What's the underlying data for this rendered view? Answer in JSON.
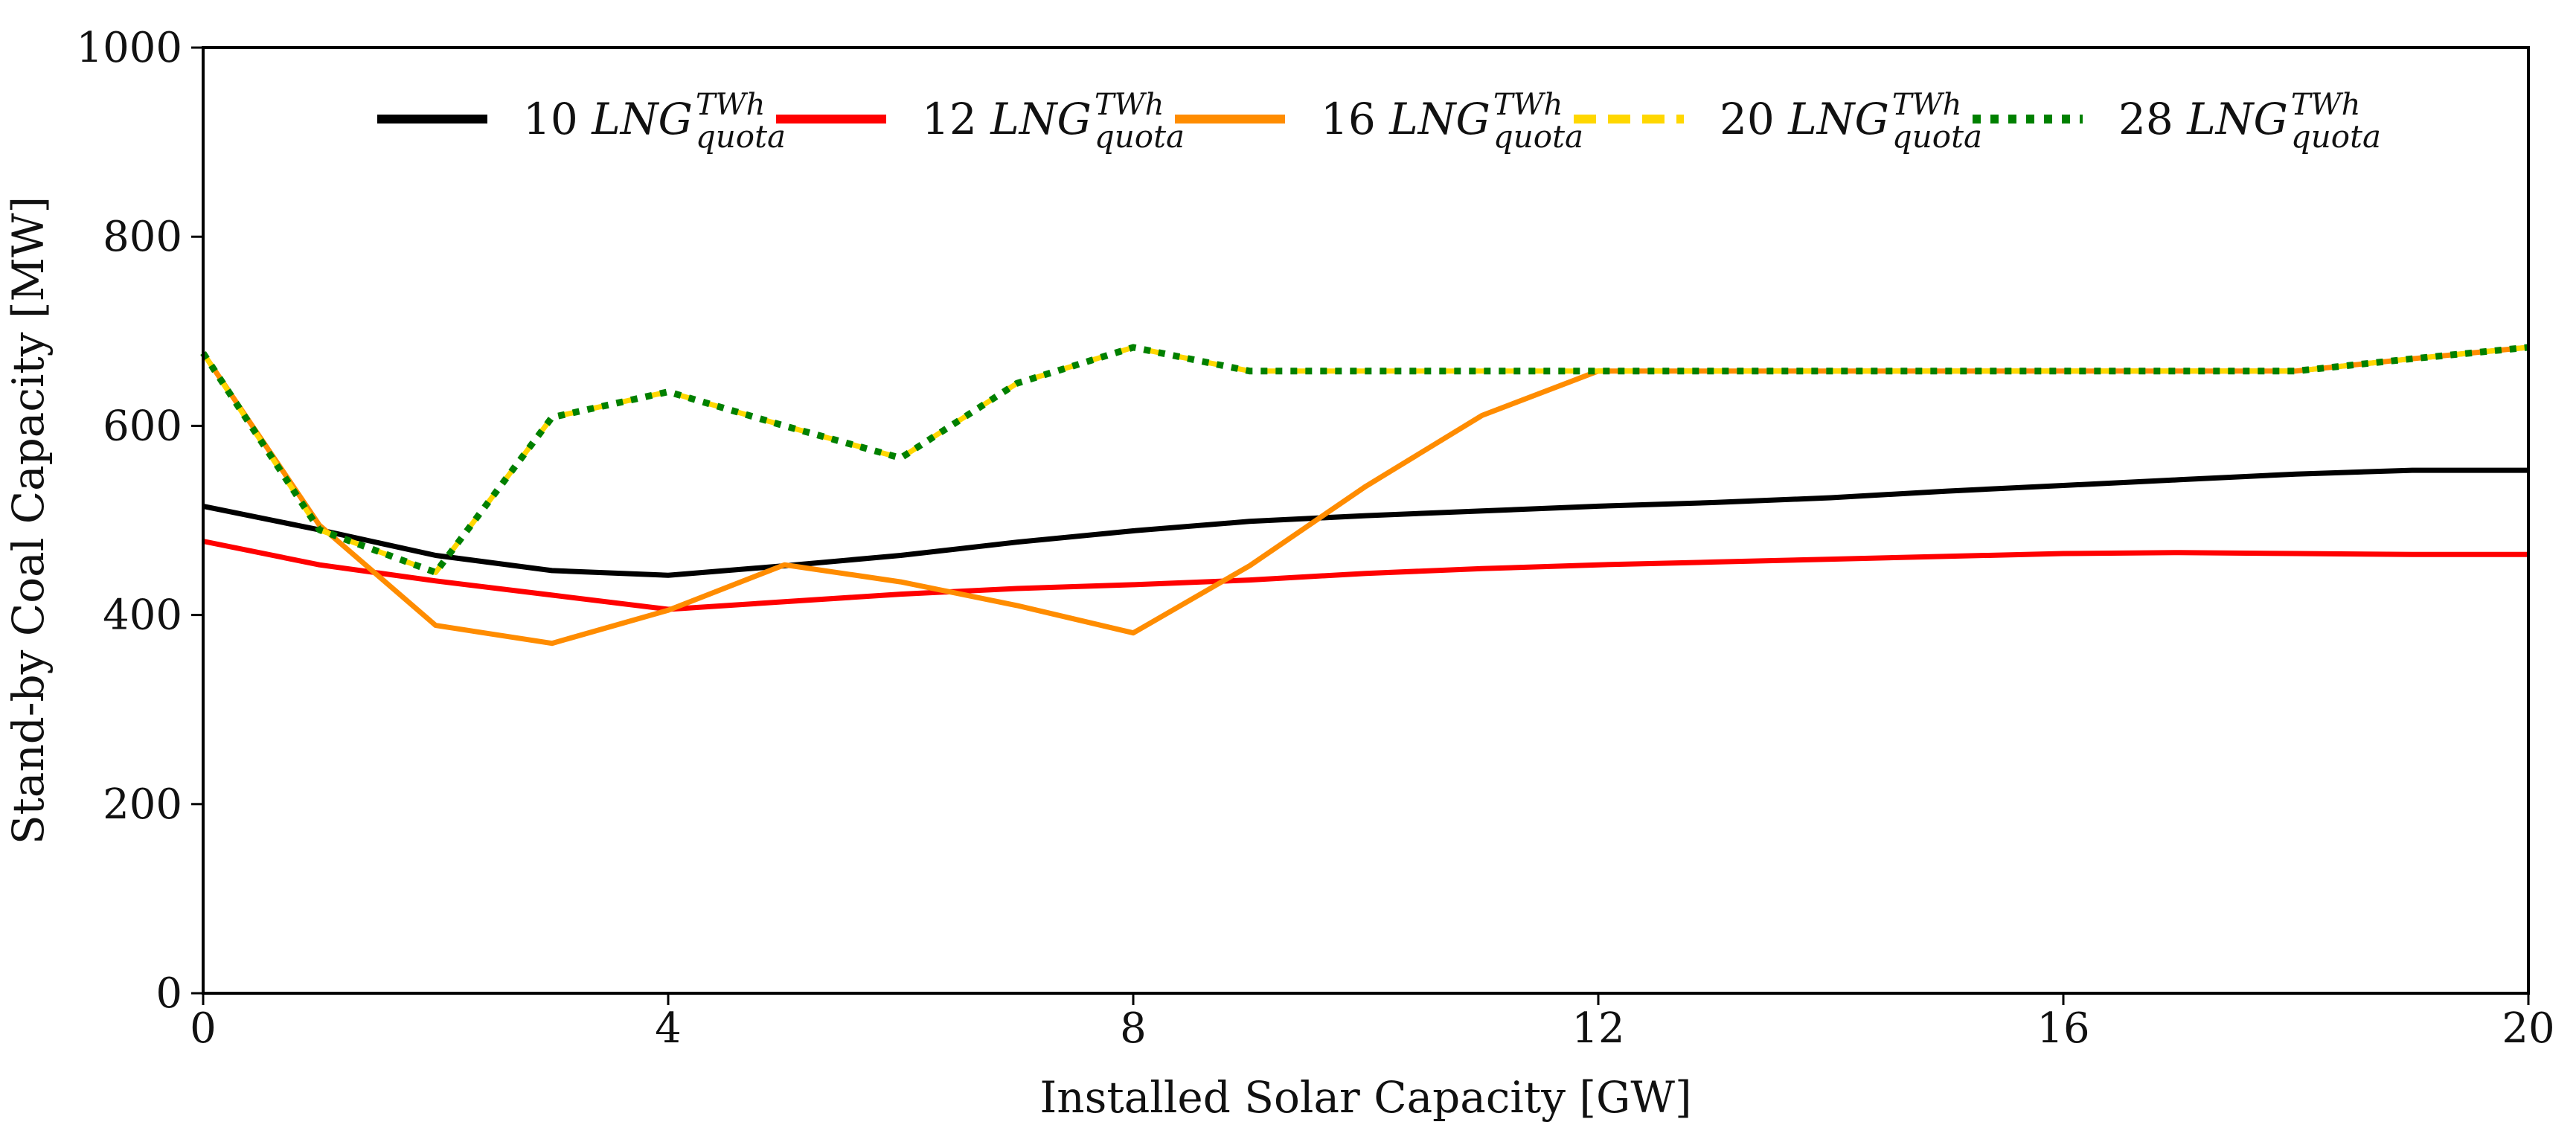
{
  "chart_data": {
    "type": "line",
    "title": "",
    "xlabel": "Installed Solar Capacity [GW]",
    "ylabel": "Stand-by Coal Capacity [MW]",
    "xlim": [
      0,
      20
    ],
    "ylim": [
      0,
      1000
    ],
    "xticks": [
      0,
      4,
      8,
      12,
      16,
      20
    ],
    "yticks": [
      0,
      200,
      400,
      600,
      800,
      1000
    ],
    "xtick_labels": [
      "0",
      "4",
      "8",
      "12",
      "16",
      "20"
    ],
    "ytick_labels": [
      "0",
      "200",
      "400",
      "600",
      "800",
      "1000"
    ],
    "grid": false,
    "legend_position": "top",
    "x": [
      0,
      1,
      2,
      3,
      4,
      5,
      6,
      7,
      8,
      9,
      10,
      11,
      12,
      13,
      14,
      15,
      16,
      17,
      18,
      19,
      20
    ],
    "series": [
      {
        "name": "10 LNG_quota^TWh",
        "number": "10",
        "base": "LNG",
        "sub": "quota",
        "sup": "TWh",
        "color": "#000000",
        "style": "solid",
        "values": [
          515,
          490,
          463,
          447,
          442,
          452,
          463,
          477,
          489,
          499,
          505,
          510,
          515,
          519,
          524,
          531,
          537,
          543,
          549,
          553,
          553
        ]
      },
      {
        "name": "12 LNG_quota^TWh",
        "number": "12",
        "base": "LNG",
        "sub": "quota",
        "sup": "TWh",
        "color": "#ff0000",
        "style": "solid",
        "values": [
          478,
          453,
          436,
          421,
          406,
          414,
          422,
          428,
          432,
          437,
          444,
          449,
          453,
          456,
          459,
          462,
          465,
          466,
          465,
          464,
          464
        ]
      },
      {
        "name": "16 LNG_quota^TWh",
        "number": "16",
        "base": "LNG",
        "sub": "quota",
        "sup": "TWh",
        "color": "#ff8c00",
        "style": "solid",
        "values": [
          677,
          495,
          389,
          370,
          405,
          453,
          435,
          410,
          381,
          452,
          536,
          611,
          658,
          658,
          658,
          658,
          658,
          658,
          658,
          671,
          683
        ]
      },
      {
        "name": "20 LNG_quota^TWh",
        "number": "20",
        "base": "LNG",
        "sub": "quota",
        "sup": "TWh",
        "color": "#ffd700",
        "style": "dashed",
        "values": [
          677,
          490,
          445,
          609,
          636,
          600,
          566,
          645,
          683,
          658,
          658,
          658,
          658,
          658,
          658,
          658,
          658,
          658,
          658,
          671,
          683
        ]
      },
      {
        "name": "28 LNG_quota^TWh",
        "number": "28",
        "base": "LNG",
        "sub": "quota",
        "sup": "TWh",
        "color": "#008000",
        "style": "dotted",
        "values": [
          677,
          490,
          445,
          609,
          636,
          600,
          566,
          645,
          683,
          658,
          658,
          658,
          658,
          658,
          658,
          658,
          658,
          658,
          658,
          671,
          683
        ]
      }
    ]
  }
}
